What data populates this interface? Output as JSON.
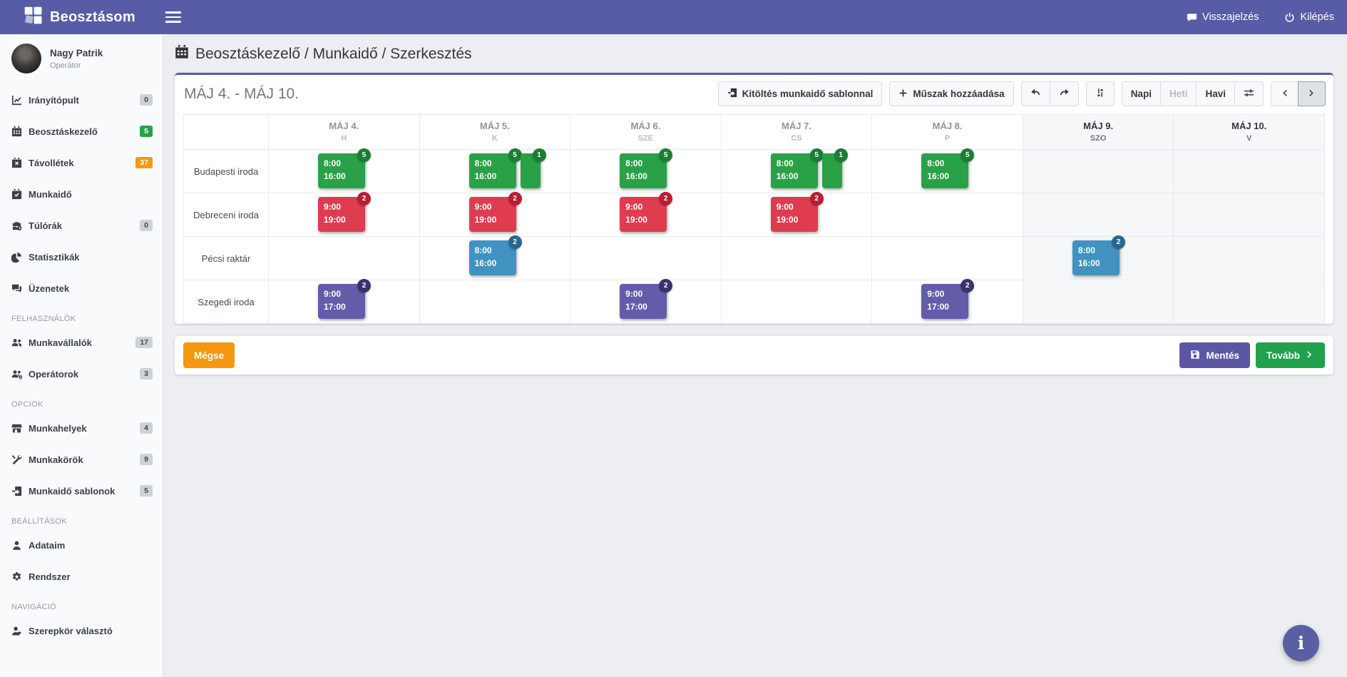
{
  "navbar": {
    "brand": "Beosztásom",
    "feedback": "Visszajelzés",
    "logout": "Kilépés"
  },
  "user": {
    "name": "Nagy Patrik",
    "role": "Operátor"
  },
  "sidebar": {
    "items": [
      {
        "label": "Irányítópult",
        "icon": "chart-line-icon",
        "badge": "0",
        "badge_color": "gray"
      },
      {
        "label": "Beosztáskezelő",
        "icon": "calendar-icon",
        "badge": "5",
        "badge_color": "green"
      },
      {
        "label": "Távollétek",
        "icon": "calendar-times-icon",
        "badge": "37",
        "badge_color": "orange"
      },
      {
        "label": "Munkaidő",
        "icon": "calendar-check-icon"
      },
      {
        "label": "Túlórák",
        "icon": "business-time-icon",
        "badge": "0",
        "badge_color": "gray"
      },
      {
        "label": "Statisztikák",
        "icon": "chart-pie-icon"
      },
      {
        "label": "Üzenetek",
        "icon": "comments-icon"
      },
      {
        "header": "FELHASZNÁLÓK"
      },
      {
        "label": "Munkavállalók",
        "icon": "users-icon",
        "badge": "17",
        "badge_color": "gray"
      },
      {
        "label": "Operátorok",
        "icon": "users-cog-icon",
        "badge": "3",
        "badge_color": "gray"
      },
      {
        "header": "OPCIÓK"
      },
      {
        "label": "Munkahelyek",
        "icon": "store-icon",
        "badge": "4",
        "badge_color": "gray"
      },
      {
        "label": "Munkakörök",
        "icon": "tools-icon",
        "badge": "9",
        "badge_color": "gray"
      },
      {
        "label": "Munkaidő sablonok",
        "icon": "file-import-icon",
        "badge": "5",
        "badge_color": "gray"
      },
      {
        "header": "BEÁLLÍTÁSOK"
      },
      {
        "label": "Adataim",
        "icon": "user-icon"
      },
      {
        "label": "Rendszer",
        "icon": "cog-icon"
      },
      {
        "header": "NAVIGÁCIÓ"
      },
      {
        "label": "Szerepkör választó",
        "icon": "user-tag-icon"
      }
    ]
  },
  "breadcrumb": "Beosztáskezelő / Munkaidő / Szerkesztés",
  "scheduler": {
    "range_title": "MÁJ 4. - MÁJ 10.",
    "toolbar": {
      "fill_template": "Kitöltés munkaidő sablonnal",
      "add_shift": "Műszak hozzáadása",
      "view_daily": "Napi",
      "view_weekly": "Heti",
      "view_monthly": "Havi"
    },
    "days": [
      {
        "date": "MÁJ 4.",
        "dow": "H",
        "weekend": false
      },
      {
        "date": "MÁJ 5.",
        "dow": "K",
        "weekend": false
      },
      {
        "date": "MÁJ 6.",
        "dow": "SZE",
        "weekend": false
      },
      {
        "date": "MÁJ 7.",
        "dow": "CS",
        "weekend": false
      },
      {
        "date": "MÁJ 8.",
        "dow": "P",
        "weekend": false
      },
      {
        "date": "MÁJ 9.",
        "dow": "SZO",
        "weekend": true
      },
      {
        "date": "MÁJ 10.",
        "dow": "V",
        "weekend": true
      }
    ],
    "rows": [
      {
        "location": "Budapesti iroda",
        "color": "green",
        "shifts": [
          {
            "day": 0,
            "start": "8:00",
            "end": "16:00",
            "count": "5"
          },
          {
            "day": 1,
            "start": "8:00",
            "end": "16:00",
            "count": "5"
          },
          {
            "day": 1,
            "narrow": true,
            "count": "1"
          },
          {
            "day": 2,
            "start": "8:00",
            "end": "16:00",
            "count": "5"
          },
          {
            "day": 3,
            "start": "8:00",
            "end": "16:00",
            "count": "5"
          },
          {
            "day": 3,
            "narrow": true,
            "count": "1"
          },
          {
            "day": 4,
            "start": "8:00",
            "end": "16:00",
            "count": "5"
          }
        ]
      },
      {
        "location": "Debreceni iroda",
        "color": "red",
        "shifts": [
          {
            "day": 0,
            "start": "9:00",
            "end": "19:00",
            "count": "2"
          },
          {
            "day": 1,
            "start": "9:00",
            "end": "19:00",
            "count": "2"
          },
          {
            "day": 2,
            "start": "9:00",
            "end": "19:00",
            "count": "2"
          },
          {
            "day": 3,
            "start": "9:00",
            "end": "19:00",
            "count": "2"
          }
        ]
      },
      {
        "location": "Pécsi raktár",
        "color": "blue",
        "shifts": [
          {
            "day": 1,
            "start": "8:00",
            "end": "16:00",
            "count": "2"
          },
          {
            "day": 5,
            "start": "8:00",
            "end": "16:00",
            "count": "2"
          }
        ]
      },
      {
        "location": "Szegedi iroda",
        "color": "purple",
        "shifts": [
          {
            "day": 0,
            "start": "9:00",
            "end": "17:00",
            "count": "2"
          },
          {
            "day": 2,
            "start": "9:00",
            "end": "17:00",
            "count": "2"
          },
          {
            "day": 4,
            "start": "9:00",
            "end": "17:00",
            "count": "2"
          }
        ]
      }
    ]
  },
  "footer": {
    "cancel": "Mégse",
    "save": "Mentés",
    "next": "Tovább"
  },
  "colors": {
    "accent_purple": "#585ca6",
    "shift_green": "#2aa147",
    "shift_red": "#df3c50",
    "shift_blue": "#4192c0",
    "shift_purple": "#635ca9",
    "warning_orange": "#f5980f",
    "success_green": "#21a14b"
  }
}
